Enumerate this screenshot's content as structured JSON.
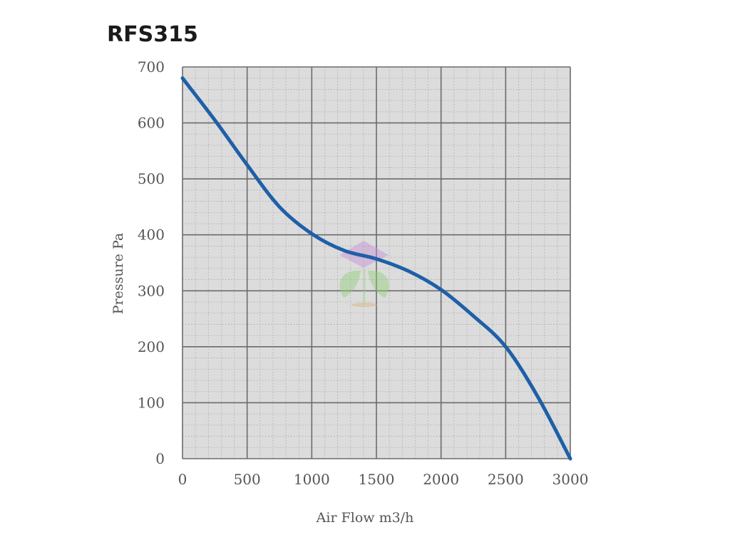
{
  "chart_data": {
    "type": "line",
    "title": "RFS315",
    "xlabel": "Air Flow m3/h",
    "ylabel": "Pressure Pa",
    "xlim": [
      0,
      3000
    ],
    "ylim": [
      0,
      700
    ],
    "x_ticks": [
      "0",
      "500",
      "1000",
      "1500",
      "2000",
      "2500",
      "3000"
    ],
    "y_ticks": [
      "0",
      "100",
      "200",
      "300",
      "400",
      "500",
      "600",
      "700"
    ],
    "grid": true,
    "series": [
      {
        "color": "#1f5fa8",
        "x": [
          0,
          250,
          500,
          750,
          1000,
          1250,
          1500,
          1750,
          2000,
          2250,
          2500,
          2750,
          3000
        ],
        "y": [
          680,
          605,
          525,
          450,
          402,
          372,
          357,
          335,
          302,
          255,
          200,
          110,
          0
        ]
      }
    ],
    "colors": {
      "plot_background": "#dcdcdc",
      "major_grid": "#6b6b6b",
      "minor_grid": "#a8a8a8"
    }
  }
}
